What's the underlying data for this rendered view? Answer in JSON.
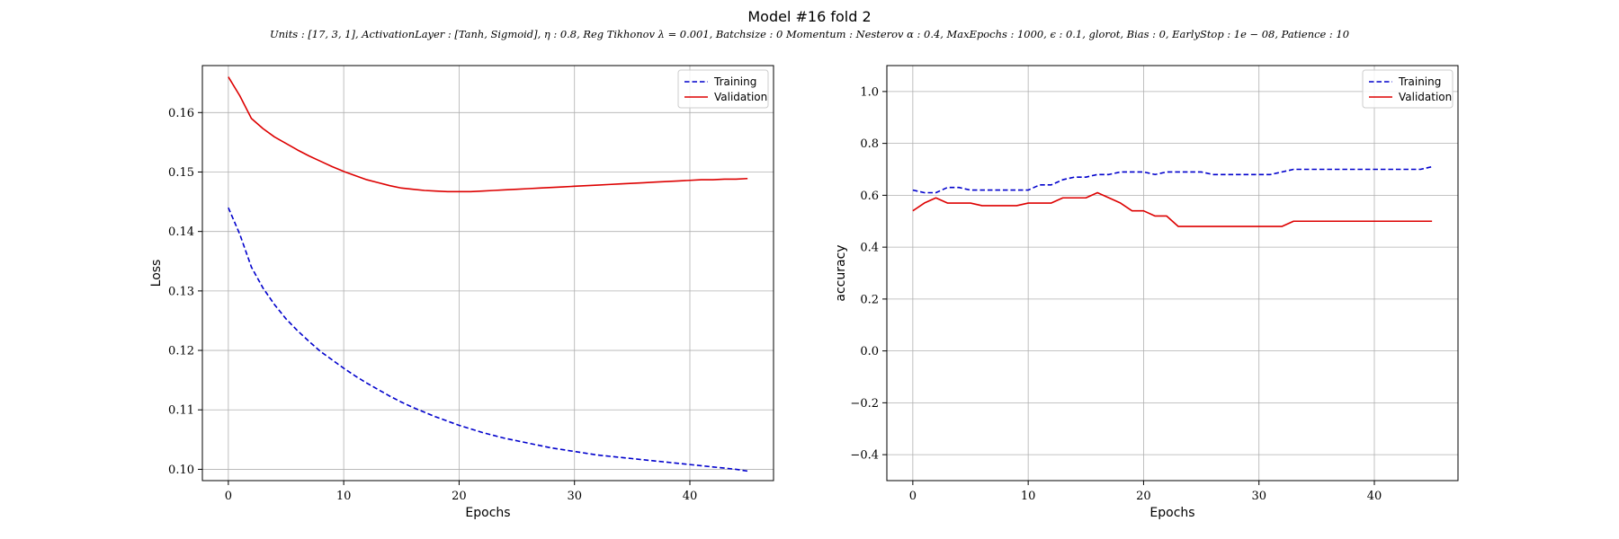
{
  "figure": {
    "title": "Model #16 fold 2",
    "subtitle": "Units : [17, 3, 1], ActivationLayer : [Tanh, Sigmoid], η : 0.8, Reg Tikhonov λ = 0.001, Batchsize : 0 Momentum : Nesterov α : 0.4, MaxEpochs : 1000, ϵ : 0.1, glorot, Bias : 0, EarlyStop : 1e − 08, Patience : 10"
  },
  "chart_data": [
    {
      "type": "line",
      "xlabel": "Epochs",
      "ylabel": "Loss",
      "xlim": [
        -2.25,
        47.25
      ],
      "ylim": [
        0.0981,
        0.1679
      ],
      "xticks": [
        0,
        10,
        20,
        30,
        40
      ],
      "yticks": [
        0.1,
        0.11,
        0.12,
        0.13,
        0.14,
        0.15,
        0.16
      ],
      "ytick_labels": [
        "0.10",
        "0.11",
        "0.12",
        "0.13",
        "0.14",
        "0.15",
        "0.16"
      ],
      "grid": true,
      "legend": "top-right",
      "x": [
        0,
        1,
        2,
        3,
        4,
        5,
        6,
        7,
        8,
        9,
        10,
        11,
        12,
        13,
        14,
        15,
        16,
        17,
        18,
        19,
        20,
        21,
        22,
        23,
        24,
        25,
        26,
        27,
        28,
        29,
        30,
        31,
        32,
        33,
        34,
        35,
        36,
        37,
        38,
        39,
        40,
        41,
        42,
        43,
        44,
        45
      ],
      "series": [
        {
          "name": "Training",
          "color": "#0000cc",
          "style": "dashed",
          "values": [
            0.144,
            0.1395,
            0.134,
            0.1305,
            0.1277,
            0.1253,
            0.1233,
            0.1215,
            0.1198,
            0.1184,
            0.117,
            0.1157,
            0.1145,
            0.1134,
            0.1123,
            0.1113,
            0.1104,
            0.1096,
            0.1088,
            0.1081,
            0.1074,
            0.1068,
            0.1062,
            0.1057,
            0.1052,
            0.1048,
            0.1044,
            0.104,
            0.1036,
            0.1033,
            0.103,
            0.1027,
            0.1024,
            0.1022,
            0.102,
            0.1018,
            0.1016,
            0.1014,
            0.1012,
            0.101,
            0.1008,
            0.1006,
            0.1004,
            0.1002,
            0.1,
            0.0997
          ]
        },
        {
          "name": "Validation",
          "color": "#dd0000",
          "style": "solid",
          "values": [
            0.166,
            0.1628,
            0.159,
            0.1573,
            0.1559,
            0.1548,
            0.1537,
            0.1527,
            0.1518,
            0.1509,
            0.1501,
            0.1494,
            0.1487,
            0.1482,
            0.1477,
            0.1473,
            0.1471,
            0.1469,
            0.1468,
            0.1467,
            0.1467,
            0.1467,
            0.1468,
            0.1469,
            0.147,
            0.1471,
            0.1472,
            0.1473,
            0.1474,
            0.1475,
            0.1476,
            0.1477,
            0.1478,
            0.1479,
            0.148,
            0.1481,
            0.1482,
            0.1483,
            0.1484,
            0.1485,
            0.1486,
            0.1487,
            0.1487,
            0.1488,
            0.1488,
            0.1489
          ]
        }
      ]
    },
    {
      "type": "line",
      "xlabel": "Epochs",
      "ylabel": "accuracy",
      "xlim": [
        -2.25,
        47.25
      ],
      "ylim": [
        -0.5,
        1.1
      ],
      "xticks": [
        0,
        10,
        20,
        30,
        40
      ],
      "yticks": [
        -0.4,
        -0.2,
        0.0,
        0.2,
        0.4,
        0.6,
        0.8,
        1.0
      ],
      "ytick_labels": [
        "−0.4",
        "−0.2",
        "0.0",
        "0.2",
        "0.4",
        "0.6",
        "0.8",
        "1.0"
      ],
      "grid": true,
      "legend": "top-right",
      "x": [
        0,
        1,
        2,
        3,
        4,
        5,
        6,
        7,
        8,
        9,
        10,
        11,
        12,
        13,
        14,
        15,
        16,
        17,
        18,
        19,
        20,
        21,
        22,
        23,
        24,
        25,
        26,
        27,
        28,
        29,
        30,
        31,
        32,
        33,
        34,
        35,
        36,
        37,
        38,
        39,
        40,
        41,
        42,
        43,
        44,
        45
      ],
      "series": [
        {
          "name": "Training",
          "color": "#0000cc",
          "style": "dashed",
          "values": [
            0.62,
            0.61,
            0.61,
            0.63,
            0.63,
            0.62,
            0.62,
            0.62,
            0.62,
            0.62,
            0.62,
            0.64,
            0.64,
            0.66,
            0.67,
            0.67,
            0.68,
            0.68,
            0.69,
            0.69,
            0.69,
            0.68,
            0.69,
            0.69,
            0.69,
            0.69,
            0.68,
            0.68,
            0.68,
            0.68,
            0.68,
            0.68,
            0.69,
            0.7,
            0.7,
            0.7,
            0.7,
            0.7,
            0.7,
            0.7,
            0.7,
            0.7,
            0.7,
            0.7,
            0.7,
            0.71
          ]
        },
        {
          "name": "Validation",
          "color": "#dd0000",
          "style": "solid",
          "values": [
            0.54,
            0.57,
            0.59,
            0.57,
            0.57,
            0.57,
            0.56,
            0.56,
            0.56,
            0.56,
            0.57,
            0.57,
            0.57,
            0.59,
            0.59,
            0.59,
            0.61,
            0.59,
            0.57,
            0.54,
            0.54,
            0.52,
            0.52,
            0.48,
            0.48,
            0.48,
            0.48,
            0.48,
            0.48,
            0.48,
            0.48,
            0.48,
            0.48,
            0.5,
            0.5,
            0.5,
            0.5,
            0.5,
            0.5,
            0.5,
            0.5,
            0.5,
            0.5,
            0.5,
            0.5,
            0.5
          ]
        }
      ]
    }
  ]
}
